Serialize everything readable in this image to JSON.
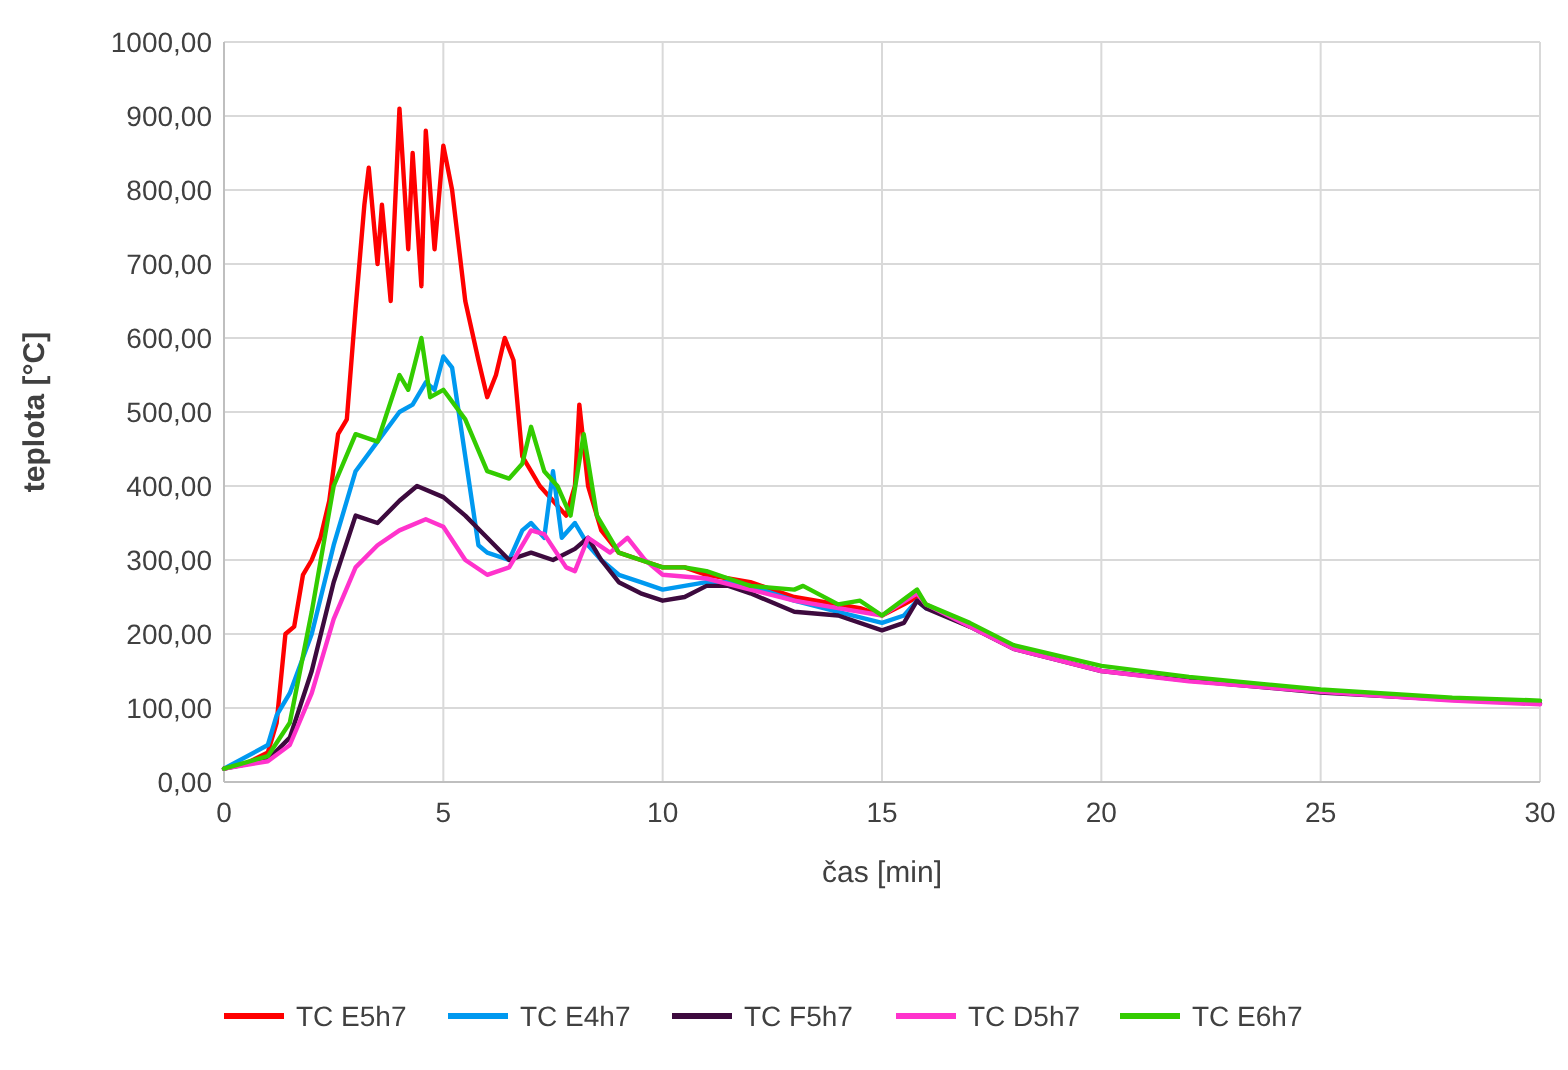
{
  "chart_data": {
    "type": "line",
    "xlabel": "čas [min]",
    "ylabel": "teplota [°C]",
    "xlim": [
      0,
      30
    ],
    "xticks": [
      0,
      5,
      10,
      15,
      20,
      25,
      30
    ],
    "ylim": [
      0,
      1000
    ],
    "yticks": [
      {
        "value": 0,
        "label": "0,00"
      },
      {
        "value": 100,
        "label": "100,00"
      },
      {
        "value": 200,
        "label": "200,00"
      },
      {
        "value": 300,
        "label": "300,00"
      },
      {
        "value": 400,
        "label": "400,00"
      },
      {
        "value": 500,
        "label": "500,00"
      },
      {
        "value": 600,
        "label": "600,00"
      },
      {
        "value": 700,
        "label": "700,00"
      },
      {
        "value": 800,
        "label": "800,00"
      },
      {
        "value": 900,
        "label": "900,00"
      },
      {
        "value": 1000,
        "label": "1000,00"
      }
    ],
    "grid": true,
    "legend": "bottom",
    "marker": "none",
    "line_style": "solid",
    "series": [
      {
        "name": "TC E5h7",
        "color": "#ff0000",
        "x": [
          0,
          0.5,
          1,
          1.2,
          1.4,
          1.6,
          1.8,
          2,
          2.2,
          2.4,
          2.6,
          2.8,
          3,
          3.2,
          3.3,
          3.5,
          3.6,
          3.8,
          4,
          4.2,
          4.3,
          4.5,
          4.6,
          4.8,
          5,
          5.2,
          5.5,
          5.8,
          6,
          6.2,
          6.4,
          6.6,
          6.8,
          7,
          7.2,
          7.5,
          7.8,
          8,
          8.1,
          8.3,
          8.6,
          9,
          9.5,
          10,
          10.5,
          11,
          11.5,
          12,
          12.5,
          13,
          13.5,
          14,
          14.5,
          15,
          15.5,
          15.8,
          16,
          17
        ],
        "values": [
          18,
          25,
          40,
          80,
          200,
          210,
          280,
          300,
          330,
          380,
          470,
          490,
          640,
          780,
          830,
          700,
          780,
          650,
          910,
          720,
          850,
          670,
          880,
          720,
          860,
          800,
          650,
          570,
          520,
          550,
          600,
          570,
          440,
          420,
          400,
          380,
          360,
          400,
          510,
          400,
          340,
          310,
          300,
          290,
          290,
          280,
          275,
          270,
          260,
          250,
          245,
          240,
          235,
          225,
          240,
          250,
          240,
          210
        ]
      },
      {
        "name": "TC E4h7",
        "color": "#0099f0",
        "x": [
          0,
          1,
          1.2,
          1.5,
          2,
          2.5,
          3,
          3.5,
          4,
          4.3,
          4.6,
          4.8,
          5,
          5.2,
          5.5,
          5.8,
          6,
          6.5,
          6.8,
          7,
          7.3,
          7.5,
          7.7,
          8,
          8.3,
          8.6,
          9,
          9.5,
          10,
          10.5,
          11,
          11.5,
          12,
          13,
          14,
          15,
          15.5,
          15.8,
          16
        ],
        "values": [
          18,
          50,
          90,
          120,
          200,
          320,
          420,
          460,
          500,
          510,
          540,
          530,
          575,
          560,
          440,
          320,
          310,
          300,
          340,
          350,
          330,
          420,
          330,
          350,
          320,
          300,
          280,
          270,
          260,
          265,
          270,
          270,
          265,
          245,
          230,
          215,
          225,
          245,
          235
        ]
      },
      {
        "name": "TC F5h7",
        "color": "#3d0a3e",
        "x": [
          0,
          1,
          1.5,
          2,
          2.5,
          3,
          3.5,
          4,
          4.4,
          5,
          5.5,
          6,
          6.5,
          7,
          7.5,
          8,
          8.3,
          8.6,
          9,
          9.5,
          10,
          10.5,
          11,
          11.5,
          12,
          13,
          14,
          15,
          15.5,
          15.8,
          16,
          17,
          18,
          20,
          22,
          25,
          28,
          30
        ],
        "values": [
          18,
          30,
          60,
          150,
          270,
          360,
          350,
          380,
          400,
          385,
          360,
          330,
          300,
          310,
          300,
          315,
          330,
          300,
          270,
          255,
          245,
          250,
          265,
          265,
          255,
          230,
          225,
          205,
          215,
          245,
          235,
          210,
          180,
          150,
          137,
          121,
          111,
          106
        ]
      },
      {
        "name": "TC D5h7",
        "color": "#ff33cc",
        "x": [
          0,
          1,
          1.5,
          2,
          2.5,
          3,
          3.5,
          4,
          4.6,
          5,
          5.5,
          6,
          6.5,
          7,
          7.3,
          7.8,
          8,
          8.3,
          8.8,
          9.2,
          9.6,
          10,
          11,
          12,
          13,
          14,
          15,
          15.8,
          16,
          17,
          18,
          20,
          22,
          25,
          28,
          30
        ],
        "values": [
          18,
          28,
          50,
          120,
          220,
          290,
          320,
          340,
          355,
          345,
          300,
          280,
          290,
          340,
          335,
          290,
          285,
          330,
          310,
          330,
          300,
          280,
          275,
          260,
          245,
          235,
          225,
          255,
          240,
          210,
          180,
          150,
          136,
          122,
          110,
          105
        ]
      },
      {
        "name": "TC E6h7",
        "color": "#33cc00",
        "x": [
          0,
          1,
          1.5,
          2,
          2.5,
          3,
          3.5,
          4,
          4.2,
          4.5,
          4.7,
          5,
          5.5,
          6,
          6.5,
          6.8,
          7,
          7.3,
          7.6,
          7.9,
          8.2,
          8.5,
          9,
          9.5,
          10,
          10.5,
          11,
          11.5,
          12,
          13,
          13.2,
          14,
          14.5,
          15,
          15.8,
          16,
          17,
          18,
          20,
          22,
          25,
          28,
          30
        ],
        "values": [
          18,
          35,
          80,
          230,
          400,
          470,
          460,
          550,
          530,
          600,
          520,
          530,
          490,
          420,
          410,
          430,
          480,
          420,
          400,
          360,
          470,
          360,
          310,
          300,
          290,
          290,
          285,
          275,
          265,
          260,
          265,
          240,
          245,
          225,
          260,
          240,
          215,
          185,
          157,
          142,
          125,
          114,
          110
        ]
      }
    ]
  }
}
